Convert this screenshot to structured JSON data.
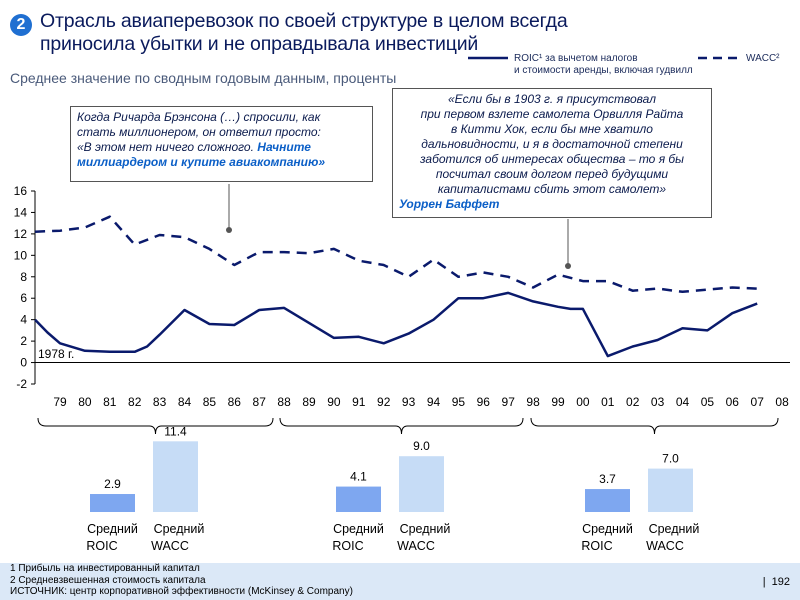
{
  "header": {
    "badge": "2",
    "title_line1": "Отрасль авиаперевозок по своей структуре в целом всегда",
    "title_line2": "приносила убытки и не оправдывала инвестиций",
    "subtitle": "Среднее значение по сводным годовым данным, проценты"
  },
  "legend": {
    "roic_line1": "ROIC¹ за вычетом налогов",
    "roic_line2": "и стоимости аренды, включая гудвилл",
    "wacc": "WACC²"
  },
  "notes": {
    "branson_l1": "Когда Ричарда Брэнсона (…) спросили, как",
    "branson_l2": "стать миллионером, он ответил просто:",
    "branson_l3": "«В этом нет ничего сложного. ",
    "branson_bold_l3": "Начните",
    "branson_bold_l4": "миллиардером и купите авиакомпанию»",
    "buffett_l1": "«Если бы в 1903 г. я присутствовал",
    "buffett_l2": "при первом взлете самолета Орвилля Райта",
    "buffett_l3": "в Китти Хок, если бы мне хватило",
    "buffett_l4": "дальновидности, и я в достаточной степени",
    "buffett_l5": "заботился об интересах общества – то я бы",
    "buffett_l6": "посчитал своим долгом перед будущими",
    "buffett_l7": "капиталистами сбить этот самолет»",
    "buffett_author": "Уоррен Баффет"
  },
  "chart_data": {
    "type": "line",
    "title": "Среднее значение по сводным годовым данным, проценты",
    "start_label": "1978 г.",
    "y_ticks": [
      "16",
      "14",
      "12",
      "10",
      "8",
      "6",
      "4",
      "2",
      "0",
      "-2"
    ],
    "ylim": [
      -2,
      16
    ],
    "categories": [
      "79",
      "80",
      "81",
      "82",
      "83",
      "84",
      "85",
      "86",
      "87",
      "88",
      "89",
      "90",
      "91",
      "92",
      "93",
      "94",
      "95",
      "96",
      "97",
      "98",
      "99",
      "00",
      "01",
      "02",
      "03",
      "04",
      "05",
      "06",
      "07",
      "08"
    ],
    "series": [
      {
        "name": "ROIC",
        "style": "solid",
        "color": "#0a1a6c",
        "x": [
          78,
          78.5,
          79,
          80,
          81,
          82,
          82.5,
          83,
          84,
          85,
          86,
          87,
          88,
          89,
          90,
          91,
          92,
          93,
          94,
          95,
          96,
          97,
          98,
          99,
          99.5,
          100,
          101,
          102,
          103,
          104,
          105,
          106,
          107
        ],
        "values": [
          4.0,
          2.8,
          1.8,
          1.1,
          1.0,
          1.0,
          1.5,
          2.6,
          4.9,
          3.6,
          3.5,
          4.9,
          5.1,
          3.7,
          2.3,
          2.4,
          1.8,
          2.7,
          4.0,
          6.0,
          6.0,
          6.5,
          5.7,
          5.2,
          5.0,
          5.0,
          0.6,
          1.5,
          2.1,
          3.2,
          3.0,
          4.6,
          5.5
        ]
      },
      {
        "name": "WACC",
        "style": "dashed",
        "color": "#0a1a6c",
        "x": [
          78,
          79,
          80,
          81,
          82,
          83,
          84,
          85,
          86,
          87,
          88,
          89,
          90,
          91,
          92,
          93,
          94,
          95,
          96,
          97,
          98,
          99,
          100,
          101,
          102,
          103,
          104,
          105,
          106,
          107
        ],
        "values": [
          12.2,
          12.3,
          12.6,
          13.6,
          11.0,
          11.9,
          11.7,
          10.6,
          9.1,
          10.3,
          10.3,
          10.2,
          10.6,
          9.5,
          9.1,
          8.0,
          9.6,
          8.0,
          8.4,
          8.0,
          7.0,
          8.2,
          7.6,
          7.6,
          6.7,
          6.9,
          6.6,
          6.8,
          7.0,
          6.9
        ]
      }
    ],
    "period_summaries": [
      {
        "period": "79–87",
        "roic_avg": 2.9,
        "wacc_avg": 11.4,
        "roic_label": "2.9",
        "wacc_label": "11.4",
        "label_roic_1": "Средний",
        "label_roic_2": "ROIC",
        "label_wacc_1": "Средний",
        "label_wacc_2": "WACC"
      },
      {
        "period": "88–97",
        "roic_avg": 4.1,
        "wacc_avg": 9.0,
        "roic_label": "4.1",
        "wacc_label": "9.0",
        "label_roic_1": "Средний",
        "label_roic_2": "ROIC",
        "label_wacc_1": "Средний",
        "label_wacc_2": "WACC"
      },
      {
        "period": "98–07",
        "roic_avg": 3.7,
        "wacc_avg": 7.0,
        "roic_label": "3.7",
        "wacc_label": "7.0",
        "label_roic_1": "Средний",
        "label_roic_2": "ROIC",
        "label_wacc_1": "Средний",
        "label_wacc_2": "WACC"
      }
    ],
    "colors": {
      "roic_bar": "#7ea7f0",
      "wacc_bar": "#c6dcf6",
      "axis": "#000000",
      "line": "#0a1a6c"
    }
  },
  "footer": {
    "line1": "1 Прибыль на инвестированный капитал",
    "line2": "2 Средневзвешенная стоимость капитала",
    "line3": "ИСТОЧНИК: центр корпоративной эффективности (McKinsey & Company)"
  },
  "page_number": "192"
}
